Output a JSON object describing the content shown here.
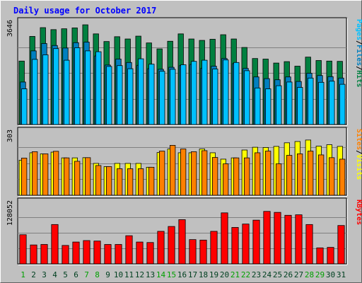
{
  "chart_data": {
    "type": "bar",
    "title": "Daily usage for October 2017",
    "days": [
      "1",
      "2",
      "3",
      "4",
      "5",
      "6",
      "7",
      "8",
      "9",
      "10",
      "11",
      "12",
      "13",
      "14",
      "15",
      "16",
      "17",
      "18",
      "19",
      "20",
      "21",
      "22",
      "23",
      "24",
      "25",
      "26",
      "27",
      "28",
      "29",
      "30",
      "31"
    ],
    "weekend_days": [
      "1",
      "7",
      "8",
      "14",
      "15",
      "21",
      "22",
      "28",
      "29"
    ],
    "colors": {
      "background": "#c0c0c0",
      "title": "#0000ff",
      "hits": "#008040",
      "files": "#0080c0",
      "pages": "#00c0ff",
      "visits": "#ffff00",
      "sites": "#ff8000",
      "kbytes": "#ff0000",
      "weekday_label": "#008040",
      "weekend_label": "#00a000",
      "slash": "#000000"
    },
    "panels": [
      {
        "id": "top",
        "max_label": "3646",
        "ymax": 3646,
        "legend": [
          "Pages",
          "/",
          "Files",
          "/",
          "Hits"
        ],
        "legend_colors": [
          "#00c0ff",
          "#000000",
          "#0080c0",
          "#000000",
          "#008040"
        ],
        "series": [
          {
            "name": "Hits",
            "color": "#008040",
            "values": [
              2240,
              3110,
              3420,
              3350,
              3380,
              3410,
              3520,
              3200,
              2930,
              3100,
              3020,
              3120,
              2880,
              2670,
              2940,
              3200,
              3020,
              2970,
              3010,
              3170,
              3020,
              2720,
              2330,
              2310,
              2170,
              2220,
              2060,
              2380,
              2260,
              2240,
              2230
            ]
          },
          {
            "name": "Files",
            "color": "#0080c0",
            "values": [
              1500,
              2600,
              2860,
              2790,
              2700,
              2890,
              2910,
              2420,
              2100,
              2310,
              2190,
              2090,
              1970,
              1950,
              2020,
              2080,
              2120,
              1980,
              2060,
              2330,
              2150,
              1980,
              1680,
              1620,
              1580,
              1680,
              1520,
              1810,
              1730,
              1690,
              1640
            ]
          },
          {
            "name": "Pages",
            "color": "#00c0ff",
            "values": [
              1260,
              2300,
              2460,
              2680,
              2270,
              2710,
              2600,
              2570,
              2050,
              2080,
              1970,
              2320,
              2130,
              1880,
              1950,
              2110,
              2230,
              2270,
              1960,
              2280,
              2190,
              1900,
              1290,
              1260,
              1370,
              1500,
              1310,
              1640,
              1490,
              1530,
              1420
            ]
          }
        ]
      },
      {
        "id": "middle",
        "max_label": "303",
        "ymax": 303,
        "legend": [
          "Sites",
          "/",
          "Visits"
        ],
        "legend_colors": [
          "#ff8000",
          "#000000",
          "#ffff00"
        ],
        "series": [
          {
            "name": "Visits",
            "color": "#ffff00",
            "values": [
              165,
              200,
              195,
              203,
              176,
              176,
              177,
              150,
              135,
              150,
              150,
              150,
              132,
              201,
              218,
              200,
              200,
              218,
              200,
              170,
              176,
              213,
              226,
              225,
              230,
              247,
              253,
              260,
              231,
              238,
              230
            ]
          },
          {
            "name": "Sites",
            "color": "#ff8000",
            "values": [
              175,
              205,
              195,
              207,
              176,
              160,
              177,
              140,
              135,
              125,
              125,
              125,
              132,
              208,
              235,
              218,
              205,
              210,
              178,
              148,
              176,
              176,
              200,
              208,
              148,
              188,
              195,
              208,
              190,
              177,
              170
            ]
          }
        ]
      },
      {
        "id": "bottom",
        "max_label": "128052",
        "ymax": 128052,
        "legend": [
          "KBytes"
        ],
        "legend_colors": [
          "#ff0000"
        ],
        "series": [
          {
            "name": "KBytes",
            "color": "#ff0000",
            "values": [
              60000,
              39000,
              40000,
              81000,
              38000,
              45000,
              48000,
              47000,
              40000,
              40000,
              58000,
              45000,
              44000,
              67000,
              77000,
              91000,
              50000,
              49000,
              67000,
              105000,
              75000,
              82000,
              90000,
              108000,
              106000,
              100000,
              101000,
              81000,
              33000,
              34000,
              79000
            ]
          }
        ]
      }
    ]
  }
}
